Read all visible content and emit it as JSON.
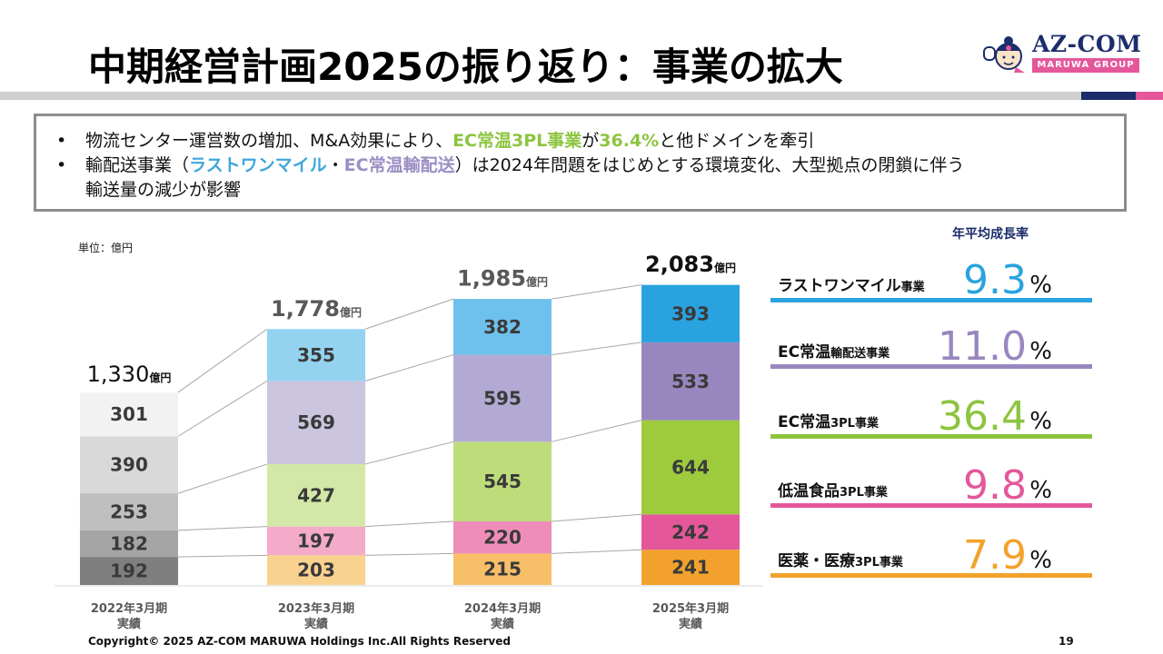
{
  "header": {
    "title": "中期経営計画2025の振り返り：事業の拡大",
    "logo_brand": "AZ-COM",
    "logo_group": "MARUWA GROUP"
  },
  "summary": {
    "line1_pre": "物流センター運営数の増加、M&A効果により、",
    "line1_hl1": "EC常温3PL事業",
    "line1_mid": "が",
    "line1_hl2": "36.4%",
    "line1_post": "と他ドメインを牽引",
    "line2_pre": "輸配送事業（",
    "line2_hl1": "ラストワンマイル",
    "line2_sep": "・",
    "line2_hl2": "EC常温輸配送",
    "line2_post": "）は2024年問題をはじめとする環境変化、大型拠点の閉鎖に伴う",
    "line2_cont": "輸送量の減少が影響",
    "bullet": "•"
  },
  "unit_label": "単位：億円",
  "chart_data": {
    "type": "bar",
    "stacked": true,
    "unit": "億円",
    "categories": [
      "2022年3月期\n実績",
      "2023年3月期\n実績",
      "2024年3月期\n実績",
      "2025年3月期\n実績"
    ],
    "category_lines": [
      [
        "2022年3月期",
        "実績"
      ],
      [
        "2023年3月期",
        "実績"
      ],
      [
        "2024年3月期",
        "実績"
      ],
      [
        "2025年3月期",
        "実績"
      ]
    ],
    "totals": [
      1330,
      1778,
      1985,
      2083
    ],
    "total_labels": [
      "1,330",
      "1,778",
      "1,985",
      "2,083"
    ],
    "series": [
      {
        "name": "医薬・医療3PL事業",
        "values": [
          192,
          203,
          215,
          241
        ],
        "colors": [
          "#7f7f7f",
          "#f9d28f",
          "#f7bf68",
          "#f2a22c"
        ]
      },
      {
        "name": "低温食品3PL事業",
        "values": [
          182,
          197,
          220,
          242
        ],
        "colors": [
          "#a5a5a5",
          "#f3abc9",
          "#ee8dba",
          "#e4579a"
        ]
      },
      {
        "name": "EC常温3PL事業",
        "values": [
          253,
          427,
          545,
          644
        ],
        "colors": [
          "#bfbfbf",
          "#d3e8a6",
          "#bddd7b",
          "#9dcb3d"
        ]
      },
      {
        "name": "EC常温輸配送事業",
        "values": [
          390,
          569,
          595,
          533
        ],
        "colors": [
          "#d9d9d9",
          "#cbc5df",
          "#b3aad4",
          "#9887bf"
        ]
      },
      {
        "name": "ラストワンマイル事業",
        "values": [
          301,
          355,
          382,
          393
        ],
        "colors": [
          "#f2f2f2",
          "#93d3f0",
          "#6ec1ec",
          "#29a3df"
        ]
      }
    ],
    "ylim": [
      0,
      2200
    ],
    "legend": "none",
    "grid": false
  },
  "growth": {
    "title": "年平均成長率",
    "percent_sign": "%",
    "items": [
      {
        "label_main": "ラストワンマイル",
        "label_small": "事業",
        "value": "9.3",
        "color": "#29a3df"
      },
      {
        "label_main": "EC常温",
        "label_small": "輸配送事業",
        "value": "11.0",
        "color": "#9887bf"
      },
      {
        "label_main": "EC常温",
        "label_small": "3PL事業",
        "value": "36.4",
        "color": "#8dc43f"
      },
      {
        "label_main": "低温食品",
        "label_small": "3PL事業",
        "value": "9.8",
        "color": "#e4579a"
      },
      {
        "label_main": "医薬・医療",
        "label_small": "3PL事業",
        "value": "7.9",
        "color": "#f2a22c"
      }
    ]
  },
  "footer": {
    "copyright": "Copyright© 2025 AZ-COM MARUWA Holdings Inc.All Rights Reserved",
    "page": "19"
  }
}
